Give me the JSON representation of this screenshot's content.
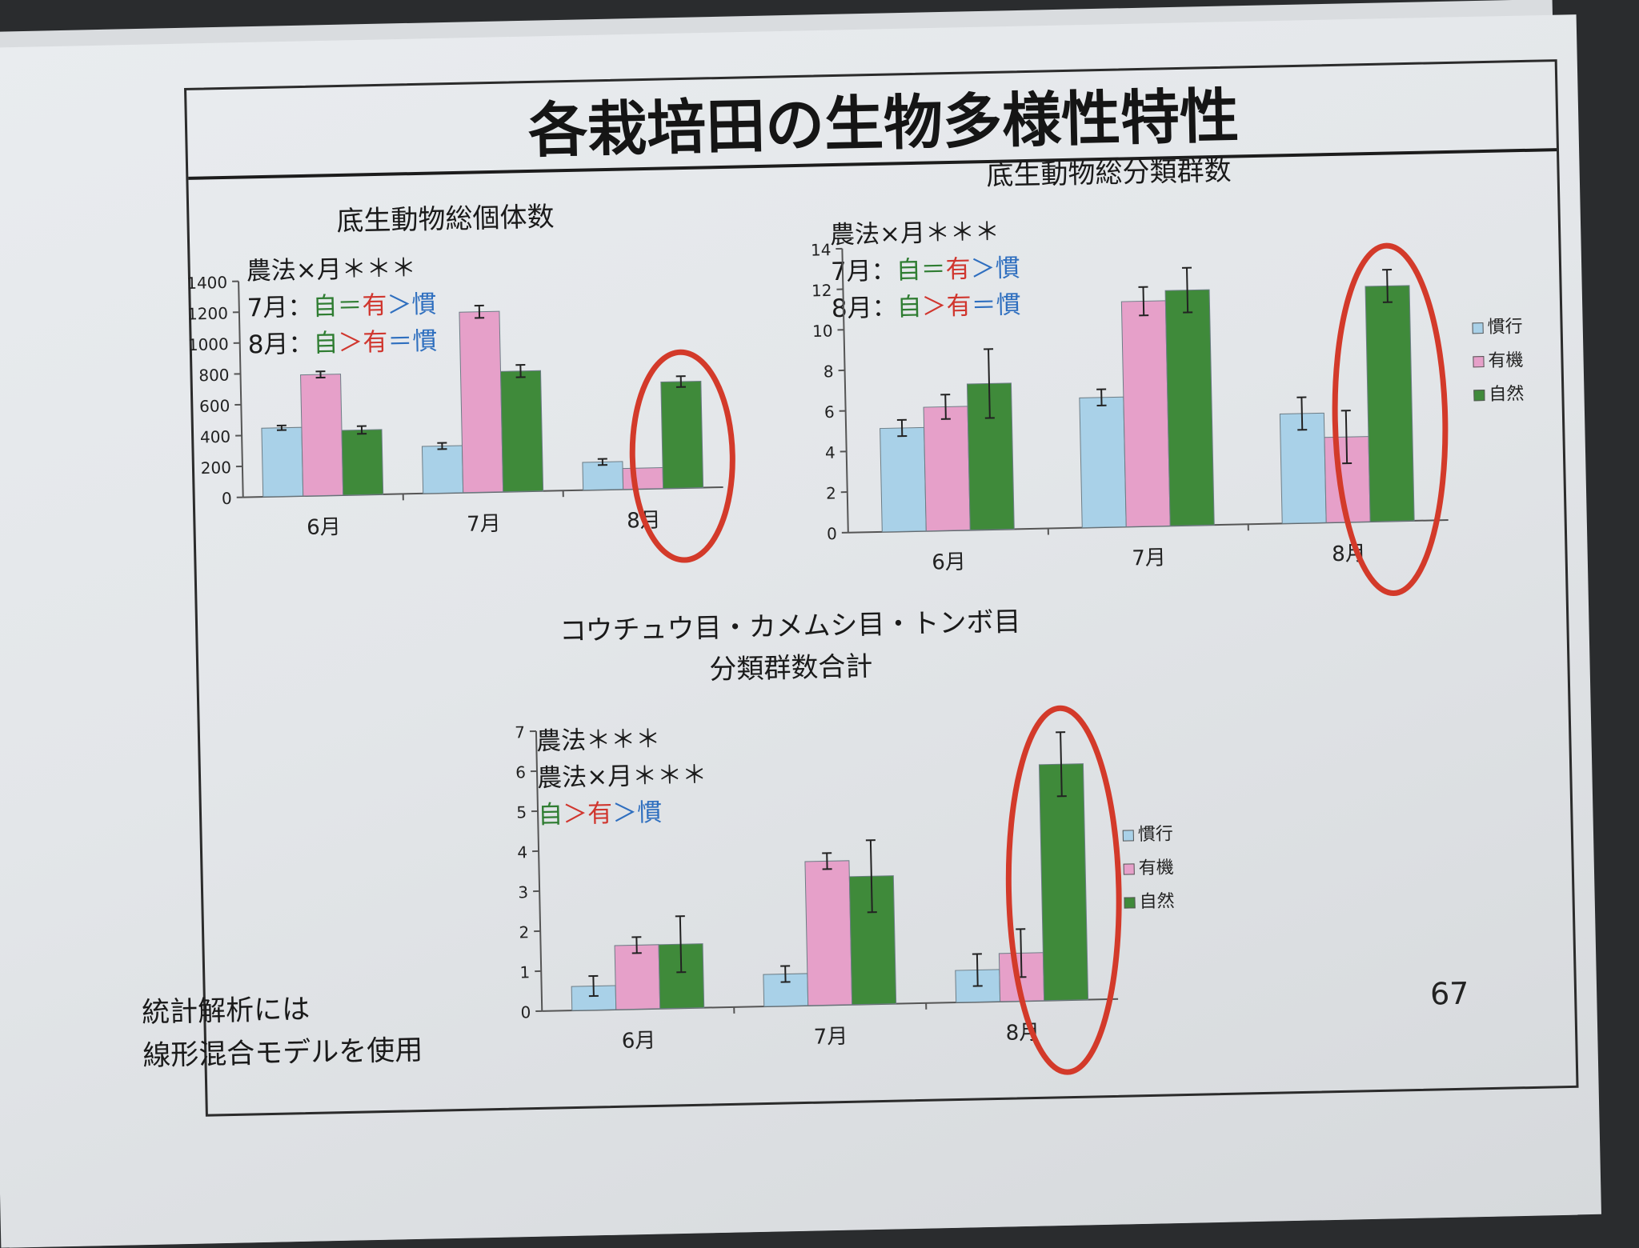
{
  "slide": {
    "title": "各栽培田の生物多様性特性",
    "page_number": "67",
    "footnote_line1": "統計解析には",
    "footnote_line2": "線形混合モデルを使用"
  },
  "colors": {
    "conventional": "#a9d1e8",
    "organic": "#e6a0c9",
    "natural": "#3f8a3a",
    "highlight_circle": "#d33a2a"
  },
  "legend": {
    "conventional": "慣行",
    "organic": "有機",
    "natural": "自然"
  },
  "chart1_notes": {
    "line1": "農法×月＊＊＊",
    "line2_prefix": "7月：",
    "line3_prefix": "8月：",
    "nat": "自",
    "org": "有",
    "conv": "慣",
    "eq": "＝",
    "gt": "＞"
  },
  "chart3_notes": {
    "line1": "農法＊＊＊",
    "line2": "農法×月＊＊＊",
    "nat": "自",
    "org": "有",
    "conv": "慣",
    "gt": "＞"
  },
  "chart_data": [
    {
      "type": "bar",
      "title": "底生動物総個体数",
      "categories": [
        "6月",
        "7月",
        "8月"
      ],
      "ylim": [
        0,
        1400
      ],
      "yticks": [
        0,
        200,
        400,
        600,
        800,
        1000,
        1200,
        1400
      ],
      "series": [
        {
          "name": "慣行",
          "values": [
            445,
            305,
            180
          ],
          "errors": [
            15,
            20,
            20
          ]
        },
        {
          "name": "有機",
          "values": [
            785,
            1170,
            135
          ],
          "errors": [
            20,
            40,
            0
          ]
        },
        {
          "name": "自然",
          "values": [
            420,
            780,
            690
          ],
          "errors": [
            25,
            40,
            35
          ]
        }
      ],
      "highlight_category": "8月",
      "legend": false
    },
    {
      "type": "bar",
      "title": "底生動物総分類群数",
      "categories": [
        "6月",
        "7月",
        "8月"
      ],
      "ylim": [
        0,
        14
      ],
      "yticks": [
        0,
        2,
        4,
        6,
        8,
        10,
        12,
        14
      ],
      "series": [
        {
          "name": "慣行",
          "values": [
            5.1,
            6.4,
            5.4
          ],
          "errors": [
            0.4,
            0.4,
            0.8
          ]
        },
        {
          "name": "有機",
          "values": [
            6.1,
            11.1,
            4.2
          ],
          "errors": [
            0.6,
            0.7,
            1.3
          ]
        },
        {
          "name": "自然",
          "values": [
            7.2,
            11.6,
            11.6
          ],
          "errors": [
            1.7,
            1.1,
            0.8
          ]
        }
      ],
      "highlight_category": "8月",
      "legend": true
    },
    {
      "type": "bar",
      "title": "コウチュウ目・カメムシ目・トンボ目",
      "subtitle": "分類群数合計",
      "categories": [
        "6月",
        "7月",
        "8月"
      ],
      "ylim": [
        0,
        7
      ],
      "yticks": [
        0,
        1,
        2,
        3,
        4,
        5,
        6,
        7
      ],
      "series": [
        {
          "name": "慣行",
          "values": [
            0.6,
            0.8,
            0.8
          ],
          "errors": [
            0.25,
            0.2,
            0.4
          ]
        },
        {
          "name": "有機",
          "values": [
            1.6,
            3.6,
            1.2
          ],
          "errors": [
            0.2,
            0.2,
            0.6
          ]
        },
        {
          "name": "自然",
          "values": [
            1.6,
            3.2,
            5.9
          ],
          "errors": [
            0.7,
            0.9,
            0.8
          ]
        }
      ],
      "highlight_category": "8月",
      "legend": true
    }
  ]
}
